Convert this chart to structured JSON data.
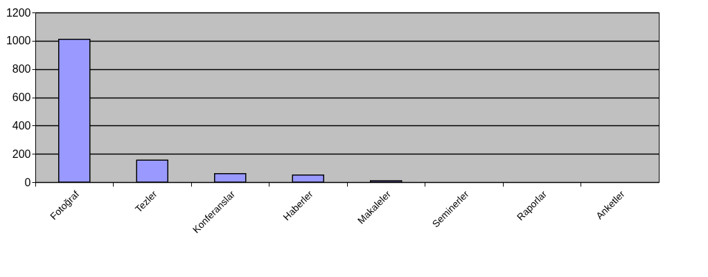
{
  "chart_data": {
    "type": "bar",
    "categories": [
      "Fotoğraf",
      "Tezler",
      "Konferanslar",
      "Haberler",
      "Makaleler",
      "Seminerler",
      "Raporlar",
      "Anketler"
    ],
    "values": [
      1010,
      155,
      60,
      50,
      10,
      0,
      0,
      0
    ],
    "color": "#9999ff",
    "ylim": [
      0,
      1200
    ],
    "yticks": [
      0,
      200,
      400,
      600,
      800,
      1000,
      1200
    ],
    "grid": "y"
  }
}
